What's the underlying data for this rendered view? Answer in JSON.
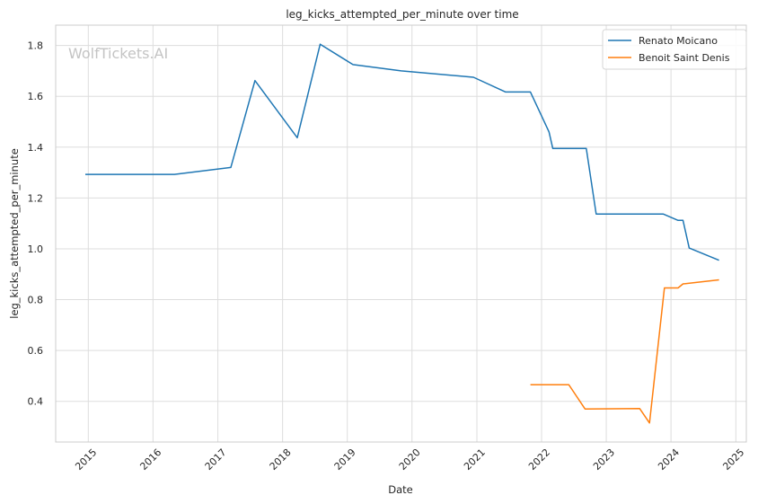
{
  "chart_data": {
    "type": "line",
    "title": "leg_kicks_attempted_per_minute over time",
    "xlabel": "Date",
    "ylabel": "leg_kicks_attempted_per_minute",
    "watermark": "WolfTickets.AI",
    "x_ticks": [
      "2015",
      "2016",
      "2017",
      "2018",
      "2019",
      "2020",
      "2021",
      "2022",
      "2023",
      "2024",
      "2025"
    ],
    "y_ticks": [
      "0.4",
      "0.6",
      "0.8",
      "1.0",
      "1.2",
      "1.4",
      "1.6",
      "1.8"
    ],
    "xlim": [
      "2014-07-01",
      "2025-03-01"
    ],
    "ylim": [
      0.24,
      1.88
    ],
    "grid": true,
    "legend_position": "top-right",
    "series": [
      {
        "name": "Renato Moicano",
        "color": "#1f77b4",
        "points": [
          [
            "2014-12-15",
            1.293
          ],
          [
            "2016-05-01",
            1.293
          ],
          [
            "2017-03-15",
            1.32
          ],
          [
            "2017-07-29",
            1.662
          ],
          [
            "2018-03-25",
            1.437
          ],
          [
            "2018-08-01",
            1.805
          ],
          [
            "2019-02-02",
            1.725
          ],
          [
            "2019-11-01",
            1.7
          ],
          [
            "2020-12-13",
            1.675
          ],
          [
            "2021-06-12",
            1.617
          ],
          [
            "2021-10-30",
            1.617
          ],
          [
            "2022-02-12",
            1.46
          ],
          [
            "2022-03-05",
            1.395
          ],
          [
            "2022-09-10",
            1.395
          ],
          [
            "2022-11-05",
            1.137
          ],
          [
            "2023-11-18",
            1.137
          ],
          [
            "2024-02-10",
            1.112
          ],
          [
            "2024-03-09",
            1.112
          ],
          [
            "2024-04-13",
            1.003
          ],
          [
            "2024-09-28",
            0.955
          ]
        ]
      },
      {
        "name": "Benoit Saint Denis",
        "color": "#ff7f0e",
        "points": [
          [
            "2021-10-30",
            0.465
          ],
          [
            "2022-06-04",
            0.465
          ],
          [
            "2022-09-03",
            0.37
          ],
          [
            "2023-07-08",
            0.372
          ],
          [
            "2023-09-02",
            0.315
          ],
          [
            "2023-11-25",
            0.846
          ],
          [
            "2024-02-10",
            0.846
          ],
          [
            "2024-03-09",
            0.862
          ],
          [
            "2024-09-28",
            0.878
          ]
        ]
      }
    ]
  }
}
